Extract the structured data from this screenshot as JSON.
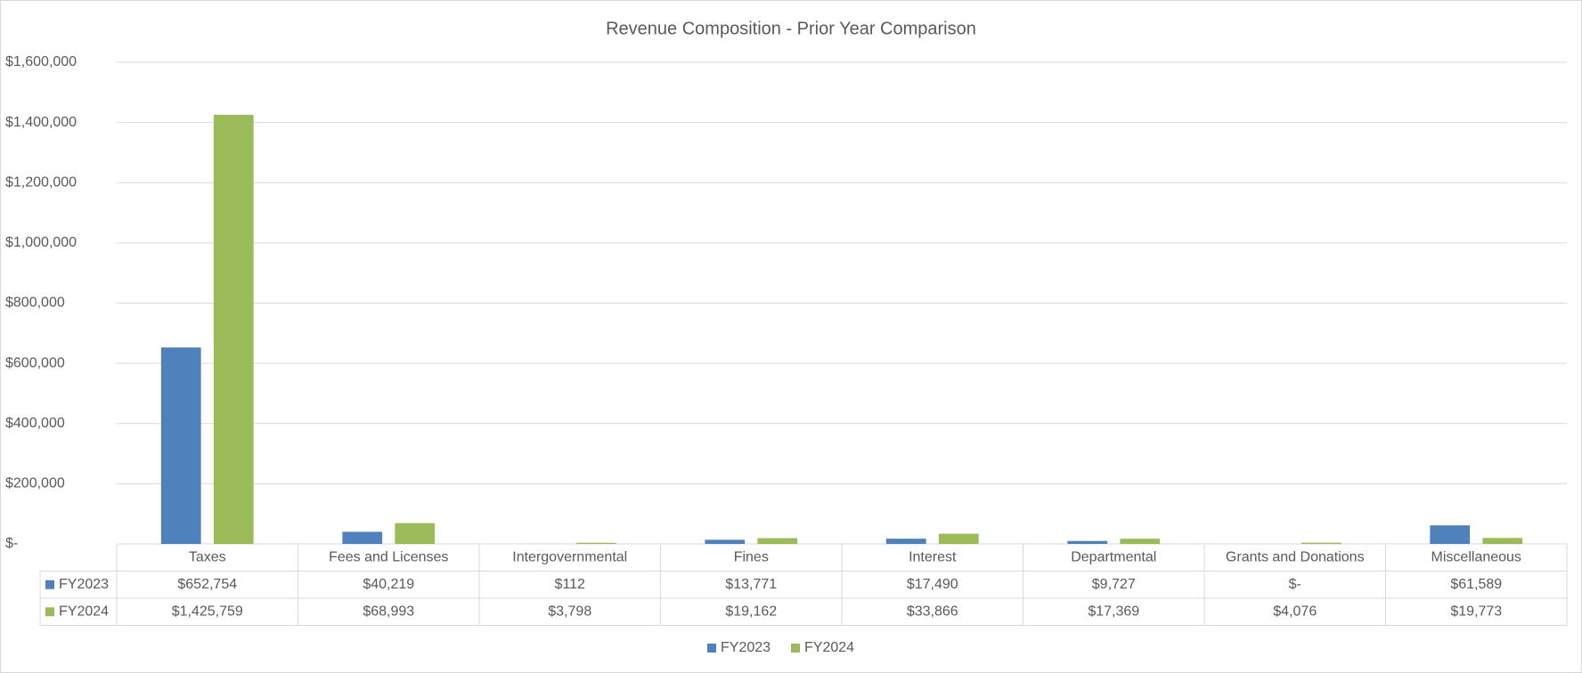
{
  "chart_data": {
    "type": "bar",
    "title": "Revenue Composition - Prior Year Comparison",
    "categories": [
      "Taxes",
      "Fees and Licenses",
      "Intergovernmental",
      "Fines",
      "Interest",
      "Departmental",
      "Grants and Donations",
      "Miscellaneous"
    ],
    "series": [
      {
        "name": "FY2023",
        "color": "#4f81bd",
        "values": [
          652754,
          40219,
          112,
          13771,
          17490,
          9727,
          0,
          61589
        ],
        "value_labels": [
          "$652,754",
          "$40,219",
          "$112",
          "$13,771",
          "$17,490",
          "$9,727",
          "$-",
          "$61,589"
        ]
      },
      {
        "name": "FY2024",
        "color": "#9bbb59",
        "values": [
          1425759,
          68993,
          3798,
          19162,
          33866,
          17369,
          4076,
          19773
        ],
        "value_labels": [
          "$1,425,759",
          "$68,993",
          "$3,798",
          "$19,162",
          "$33,866",
          "$17,369",
          "$4,076",
          "$19,773"
        ]
      }
    ],
    "ylim": [
      0,
      1600000
    ],
    "yticks": [
      {
        "value": 0,
        "label": "$-"
      },
      {
        "value": 200000,
        "label": "$200,000"
      },
      {
        "value": 400000,
        "label": "$400,000"
      },
      {
        "value": 600000,
        "label": "$600,000"
      },
      {
        "value": 800000,
        "label": "$800,000"
      },
      {
        "value": 1000000,
        "label": "$1,000,000"
      },
      {
        "value": 1200000,
        "label": "$1,200,000"
      },
      {
        "value": 1400000,
        "label": "$1,400,000"
      },
      {
        "value": 1600000,
        "label": "$1,600,000"
      }
    ],
    "grid": true,
    "legend": "bottom"
  }
}
